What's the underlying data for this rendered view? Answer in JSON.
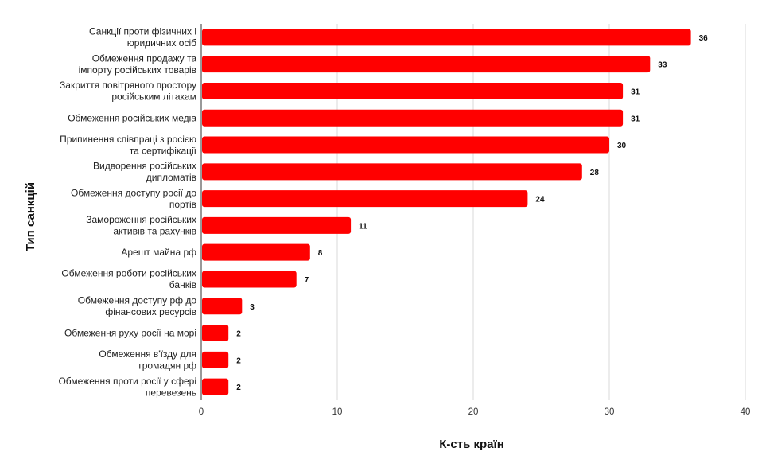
{
  "chart_data": {
    "type": "bar",
    "orientation": "horizontal",
    "xlabel": "К-сть країн",
    "ylabel": "Тип санкцій",
    "xlim": [
      0,
      40
    ],
    "xticks": [
      "0",
      "10",
      "20",
      "30",
      "40"
    ],
    "grid": true,
    "bar_color": "#ff0000",
    "categories": [
      [
        "Санкції проти фізичних і",
        "юридичних осіб"
      ],
      [
        "Обмеження продажу та",
        "імпорту російських товарів"
      ],
      [
        "Закриття повітряного простору",
        "російським літакам"
      ],
      [
        "Обмеження російських медіа"
      ],
      [
        "Припинення співпраці з росією",
        "та сертифікації"
      ],
      [
        "Видворення російських",
        "дипломатів"
      ],
      [
        "Обмеження доступу росії до",
        "портів"
      ],
      [
        "Замороження російських",
        "активів та рахунків"
      ],
      [
        "Арешт майна рф"
      ],
      [
        "Обмеження роботи російських",
        "банків"
      ],
      [
        "Обмеження доступу рф до",
        "фінансових ресурсів"
      ],
      [
        "Обмеження руху росії на морі"
      ],
      [
        "Обмеження в'їзду для",
        "громадян рф"
      ],
      [
        "Обмеження проти росії у сфері",
        "перевезень"
      ]
    ],
    "values": [
      36,
      33,
      31,
      31,
      30,
      28,
      24,
      11,
      8,
      7,
      3,
      2,
      2,
      2
    ],
    "data_labels": [
      "36",
      "33",
      "31",
      "31",
      "30",
      "28",
      "24",
      "11",
      "8",
      "7",
      "3",
      "2",
      "2",
      "2"
    ]
  }
}
